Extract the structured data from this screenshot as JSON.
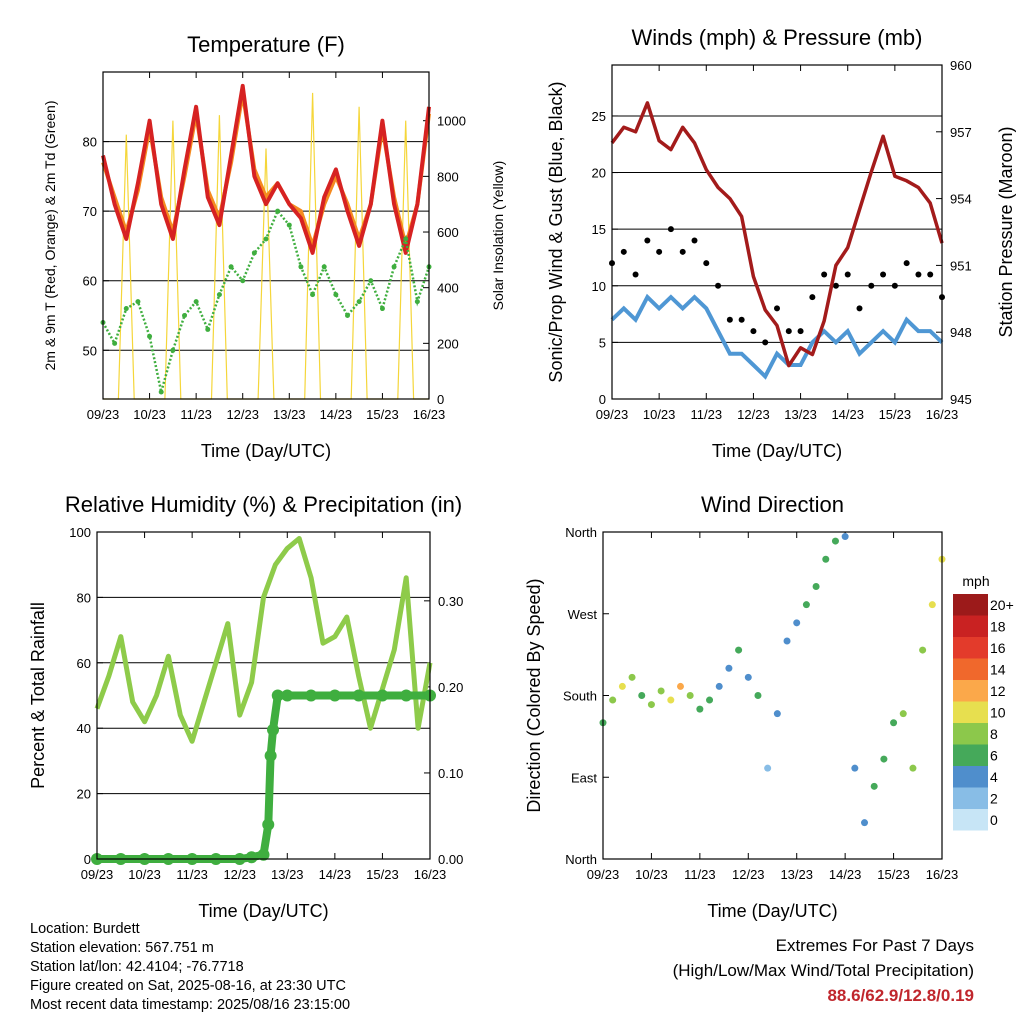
{
  "colors": {
    "temp_red": "#d62222",
    "temp_orange": "#f58a1f",
    "dew_green": "#3fae3f",
    "solar_yellow": "#f5d63a",
    "wind_blue": "#4f97d4",
    "gust_black": "#000000",
    "pressure_maroon": "#a31b1b",
    "rh_green": "#8ecb4a",
    "precip_green": "#3fae3f",
    "extremes_red": "#c0272d"
  },
  "chart_data": [
    {
      "type": "line",
      "title": "Temperature (F)",
      "xlabel": "Time (Day/UTC)",
      "ylabel": "2m & 9m T (Red, Orange) & 2m Td (Green)",
      "y2label": "Solar Insolation (Yellow)",
      "x_ticks": [
        "09/23",
        "10/23",
        "11/23",
        "12/23",
        "13/23",
        "14/23",
        "15/23",
        "16/23"
      ],
      "xlim": [
        0,
        7
      ],
      "ylim": [
        43,
        90
      ],
      "y_ticks": [
        50,
        60,
        70,
        80
      ],
      "y2lim": [
        0,
        1175
      ],
      "y2_ticks": [
        0,
        200,
        400,
        600,
        800,
        1000
      ],
      "grid": true,
      "series": [
        {
          "key": "t2m",
          "color": "#d62222",
          "axis": "left",
          "x": [
            0,
            0.25,
            0.5,
            0.75,
            1,
            1.25,
            1.5,
            1.75,
            2,
            2.25,
            2.5,
            2.75,
            3,
            3.25,
            3.5,
            3.75,
            4,
            4.25,
            4.5,
            4.75,
            5,
            5.25,
            5.5,
            5.75,
            6,
            6.25,
            6.5,
            6.75,
            7
          ],
          "values": [
            78,
            71,
            66,
            74,
            83,
            71,
            66,
            76,
            85,
            72,
            68,
            78,
            88,
            75,
            71,
            74,
            71,
            69,
            64,
            72,
            76,
            70,
            65,
            71,
            83,
            71,
            64,
            71,
            85
          ]
        },
        {
          "key": "t9m",
          "color": "#f58a1f",
          "axis": "left",
          "x": [
            0,
            0.25,
            0.5,
            0.75,
            1,
            1.25,
            1.5,
            1.75,
            2,
            2.25,
            2.5,
            2.75,
            3,
            3.25,
            3.5,
            3.75,
            4,
            4.25,
            4.5,
            4.75,
            5,
            5.25,
            5.5,
            5.75,
            6,
            6.25,
            6.5,
            6.75,
            7
          ],
          "values": [
            77,
            72,
            67,
            73,
            82,
            72,
            67,
            75,
            84,
            73,
            69,
            77,
            87,
            76,
            72,
            74,
            71,
            70,
            65,
            71,
            75,
            71,
            66,
            71,
            82,
            72,
            65,
            71,
            84
          ]
        },
        {
          "key": "td2m",
          "color": "#3fae3f",
          "axis": "left",
          "x": [
            0,
            0.25,
            0.5,
            0.75,
            1,
            1.25,
            1.5,
            1.75,
            2,
            2.25,
            2.5,
            2.75,
            3,
            3.25,
            3.5,
            3.75,
            4,
            4.25,
            4.5,
            4.75,
            5,
            5.25,
            5.5,
            5.75,
            6,
            6.25,
            6.5,
            6.75,
            7
          ],
          "values": [
            54,
            51,
            56,
            57,
            52,
            44,
            50,
            55,
            57,
            53,
            58,
            62,
            60,
            64,
            66,
            70,
            68,
            62,
            58,
            62,
            58,
            55,
            57,
            60,
            56,
            62,
            66,
            57,
            62
          ]
        },
        {
          "key": "solar",
          "color": "#f5d63a",
          "axis": "right",
          "x": [
            0,
            0.33,
            0.5,
            0.67,
            1,
            1.33,
            1.5,
            1.67,
            2,
            2.33,
            2.5,
            2.67,
            3,
            3.33,
            3.5,
            3.67,
            4,
            4.33,
            4.5,
            4.67,
            5,
            5.33,
            5.5,
            5.67,
            6,
            6.33,
            6.5,
            6.67,
            7
          ],
          "values": [
            0,
            0,
            950,
            0,
            0,
            0,
            1000,
            0,
            0,
            0,
            1020,
            0,
            0,
            0,
            900,
            0,
            0,
            0,
            1100,
            0,
            0,
            0,
            1050,
            0,
            0,
            0,
            1000,
            0,
            0
          ]
        }
      ]
    },
    {
      "type": "scatter",
      "title": "Winds (mph) & Pressure (mb)",
      "xlabel": "Time (Day/UTC)",
      "ylabel": "Sonic/Prop Wind & Gust (Blue, Black)",
      "y2label": "Station Pressure (Maroon)",
      "x_ticks": [
        "09/23",
        "10/23",
        "11/23",
        "12/23",
        "13/23",
        "14/23",
        "15/23",
        "16/23"
      ],
      "xlim": [
        0,
        7
      ],
      "ylim": [
        0,
        29.5
      ],
      "y_ticks": [
        0,
        5,
        10,
        15,
        20,
        25
      ],
      "y2lim": [
        945,
        960
      ],
      "y2_ticks": [
        945,
        948,
        951,
        954,
        957,
        960
      ],
      "grid": true,
      "series": [
        {
          "key": "wind",
          "color": "#4f97d4",
          "axis": "left",
          "x": [
            0,
            0.25,
            0.5,
            0.75,
            1,
            1.25,
            1.5,
            1.75,
            2,
            2.25,
            2.5,
            2.75,
            3,
            3.25,
            3.5,
            3.75,
            4,
            4.25,
            4.5,
            4.75,
            5,
            5.25,
            5.5,
            5.75,
            6,
            6.25,
            6.5,
            6.75,
            7
          ],
          "values": [
            7,
            8,
            7,
            9,
            8,
            9,
            8,
            9,
            8,
            6,
            4,
            4,
            3,
            2,
            4,
            3,
            3,
            5,
            6,
            5,
            6,
            4,
            5,
            6,
            5,
            7,
            6,
            6,
            5
          ]
        },
        {
          "key": "gust",
          "color": "#000000",
          "axis": "left",
          "x": [
            0,
            0.25,
            0.5,
            0.75,
            1,
            1.25,
            1.5,
            1.75,
            2,
            2.25,
            2.5,
            2.75,
            3,
            3.25,
            3.5,
            3.75,
            4,
            4.25,
            4.5,
            4.75,
            5,
            5.25,
            5.5,
            5.75,
            6,
            6.25,
            6.5,
            6.75,
            7
          ],
          "values": [
            12,
            13,
            11,
            14,
            13,
            15,
            13,
            14,
            12,
            10,
            7,
            7,
            6,
            5,
            8,
            6,
            6,
            9,
            11,
            10,
            11,
            8,
            10,
            11,
            10,
            12,
            11,
            11,
            9
          ]
        },
        {
          "key": "pressure",
          "color": "#a31b1b",
          "axis": "right",
          "x": [
            0,
            0.25,
            0.5,
            0.75,
            1,
            1.25,
            1.5,
            1.75,
            2,
            2.25,
            2.5,
            2.75,
            3,
            3.25,
            3.5,
            3.75,
            4,
            4.25,
            4.5,
            4.75,
            5,
            5.25,
            5.5,
            5.75,
            6,
            6.25,
            6.5,
            6.75,
            7
          ],
          "values": [
            956.5,
            957.2,
            957,
            958.3,
            956.6,
            956.2,
            957.2,
            956.5,
            955.3,
            954.5,
            954,
            953.2,
            950.5,
            949,
            948.3,
            946.5,
            947.3,
            947,
            948.5,
            951,
            951.8,
            953.5,
            955.2,
            956.8,
            955,
            954.8,
            954.5,
            953.8,
            952
          ]
        }
      ]
    },
    {
      "type": "line",
      "title": "Relative Humidity (%) & Precipitation (in)",
      "xlabel": "Time (Day/UTC)",
      "ylabel": "Percent & Total Rainfall",
      "x_ticks": [
        "09/23",
        "10/23",
        "11/23",
        "12/23",
        "13/23",
        "14/23",
        "15/23",
        "16/23"
      ],
      "xlim": [
        0,
        7
      ],
      "ylim": [
        0,
        100
      ],
      "y_ticks": [
        0,
        20,
        40,
        60,
        80,
        100
      ],
      "y2lim": [
        0,
        0.38
      ],
      "y2_ticks": [
        "0.00",
        "0.10",
        "0.20",
        "0.30"
      ],
      "grid": true,
      "series": [
        {
          "key": "rh",
          "color": "#8ecb4a",
          "axis": "left",
          "x": [
            0,
            0.25,
            0.5,
            0.75,
            1,
            1.25,
            1.5,
            1.75,
            2,
            2.25,
            2.5,
            2.75,
            3,
            3.25,
            3.5,
            3.75,
            4,
            4.25,
            4.5,
            4.75,
            5,
            5.25,
            5.5,
            5.75,
            6,
            6.25,
            6.5,
            6.75,
            7
          ],
          "values": [
            46,
            56,
            68,
            48,
            42,
            50,
            62,
            44,
            36,
            48,
            60,
            72,
            44,
            54,
            80,
            90,
            95,
            98,
            86,
            66,
            68,
            74,
            56,
            40,
            52,
            64,
            86,
            40,
            60
          ]
        },
        {
          "key": "precip",
          "color": "#3fae3f",
          "axis": "right",
          "x": [
            0,
            0.5,
            1,
            1.5,
            2,
            2.5,
            3,
            3.25,
            3.5,
            3.6,
            3.65,
            3.7,
            3.8,
            4,
            4.5,
            5,
            5.5,
            6,
            6.5,
            7
          ],
          "values": [
            0,
            0,
            0,
            0,
            0,
            0,
            0,
            0.002,
            0.005,
            0.04,
            0.12,
            0.15,
            0.19,
            0.19,
            0.19,
            0.19,
            0.19,
            0.19,
            0.19,
            0.19
          ]
        }
      ]
    },
    {
      "type": "scatter",
      "title": "Wind Direction",
      "xlabel": "Time (Day/UTC)",
      "ylabel": "Direction (Colored By Speed)",
      "x_ticks": [
        "09/23",
        "10/23",
        "11/23",
        "12/23",
        "13/23",
        "14/23",
        "15/23",
        "16/23"
      ],
      "xlim": [
        0,
        7
      ],
      "ylim": [
        0,
        360
      ],
      "y_ticks": [
        "North",
        "East",
        "South",
        "West",
        "North"
      ],
      "legend": {
        "title": "mph",
        "placement": "right",
        "labels": [
          "20+",
          "18",
          "16",
          "14",
          "12",
          "10",
          "8",
          "6",
          "4",
          "2",
          "0"
        ],
        "colors": [
          "#9c1a1a",
          "#c92222",
          "#e33b2b",
          "#f0682c",
          "#fba84a",
          "#e7df4f",
          "#8cc84b",
          "#45a95a",
          "#4f8ecc",
          "#88bde6",
          "#c7e5f6"
        ]
      },
      "x": [
        0,
        0.2,
        0.4,
        0.6,
        0.8,
        1,
        1.2,
        1.4,
        1.6,
        1.8,
        2,
        2.2,
        2.4,
        2.6,
        2.8,
        3,
        3.2,
        3.4,
        3.6,
        3.8,
        4,
        4.2,
        4.4,
        4.6,
        4.8,
        5,
        5.2,
        5.4,
        5.6,
        5.8,
        6,
        6.2,
        6.4,
        6.6,
        6.8,
        7
      ],
      "values": [
        150,
        175,
        190,
        200,
        180,
        170,
        185,
        175,
        190,
        180,
        165,
        175,
        190,
        210,
        230,
        200,
        180,
        100,
        160,
        240,
        260,
        280,
        300,
        330,
        350,
        355,
        100,
        40,
        80,
        110,
        150,
        160,
        100,
        230,
        280,
        330
      ],
      "speeds": [
        5,
        7,
        10,
        8,
        6,
        7,
        8,
        9,
        11,
        7,
        5,
        6,
        4,
        3,
        5,
        4,
        6,
        2,
        3,
        4,
        4,
        5,
        6,
        5,
        6,
        4,
        3,
        4,
        5,
        6,
        6,
        7,
        7,
        8,
        9,
        10
      ]
    }
  ],
  "info": {
    "location": "Location: Burdett",
    "elevation": "Station elevation: 567.751 m",
    "latlon": "Station lat/lon: 42.4104; -76.7718",
    "created": "Figure created on Sat, 2025-08-16, at 23:30 UTC",
    "recent": "Most recent data timestamp: 2025/08/16 23:15:00"
  },
  "extremes": {
    "heading": "Extremes For Past 7 Days",
    "subheading": "(High/Low/Max Wind/Total Precipitation)",
    "values": "88.6/62.9/12.8/0.19"
  }
}
